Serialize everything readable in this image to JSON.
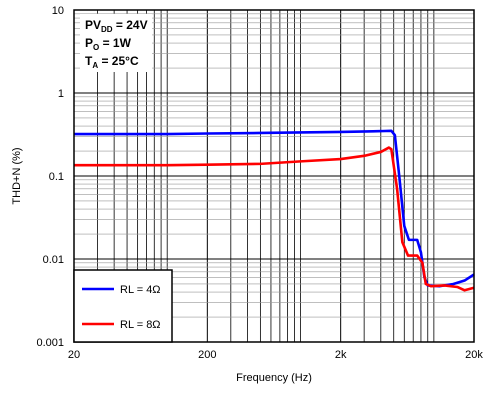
{
  "chart_data": {
    "type": "line",
    "title": "",
    "xlabel": "Frequency (Hz)",
    "ylabel": "THD+N (%)",
    "x_scale": "log",
    "y_scale": "log",
    "xlim": [
      20,
      20000
    ],
    "ylim": [
      0.001,
      10
    ],
    "grid": true,
    "x_tick_labels": [
      {
        "value": 20,
        "label": "20"
      },
      {
        "value": 200,
        "label": "200"
      },
      {
        "value": 2000,
        "label": "2k"
      },
      {
        "value": 20000,
        "label": "20k"
      }
    ],
    "y_tick_labels": [
      {
        "value": 10,
        "label": "10"
      },
      {
        "value": 1,
        "label": "1"
      },
      {
        "value": 0.1,
        "label": "0.1"
      },
      {
        "value": 0.01,
        "label": "0.01"
      },
      {
        "value": 0.001,
        "label": "0.001"
      }
    ],
    "conditions": [
      {
        "main": "PV",
        "sub": "DD",
        "rest": " = 24V"
      },
      {
        "main": "P",
        "sub": "O",
        "rest": " = 1W"
      },
      {
        "main": "T",
        "sub": "A",
        "rest": " = 25°C"
      }
    ],
    "legend_position": "bottom-left",
    "series": [
      {
        "name": "RL = 4Ω",
        "color": "#0000ff",
        "points": [
          [
            20,
            0.32
          ],
          [
            50,
            0.32
          ],
          [
            100,
            0.32
          ],
          [
            200,
            0.325
          ],
          [
            500,
            0.33
          ],
          [
            1000,
            0.335
          ],
          [
            2000,
            0.34
          ],
          [
            3500,
            0.345
          ],
          [
            4800,
            0.35
          ],
          [
            5100,
            0.31
          ],
          [
            5500,
            0.1
          ],
          [
            6000,
            0.025
          ],
          [
            6500,
            0.017
          ],
          [
            7500,
            0.017
          ],
          [
            8000,
            0.012
          ],
          [
            8500,
            0.006
          ],
          [
            9000,
            0.0048
          ],
          [
            11000,
            0.0047
          ],
          [
            14000,
            0.005
          ],
          [
            17000,
            0.0055
          ],
          [
            20000,
            0.0065
          ]
        ]
      },
      {
        "name": "RL = 8Ω",
        "color": "#ff0000",
        "points": [
          [
            20,
            0.135
          ],
          [
            50,
            0.135
          ],
          [
            100,
            0.135
          ],
          [
            200,
            0.137
          ],
          [
            500,
            0.14
          ],
          [
            1000,
            0.15
          ],
          [
            2000,
            0.16
          ],
          [
            3000,
            0.175
          ],
          [
            4000,
            0.195
          ],
          [
            4600,
            0.22
          ],
          [
            4800,
            0.21
          ],
          [
            5300,
            0.07
          ],
          [
            5800,
            0.016
          ],
          [
            6400,
            0.011
          ],
          [
            7500,
            0.011
          ],
          [
            8200,
            0.009
          ],
          [
            8700,
            0.005
          ],
          [
            9500,
            0.0047
          ],
          [
            12000,
            0.0048
          ],
          [
            15000,
            0.0046
          ],
          [
            17000,
            0.0042
          ],
          [
            20000,
            0.0045
          ]
        ]
      }
    ]
  }
}
